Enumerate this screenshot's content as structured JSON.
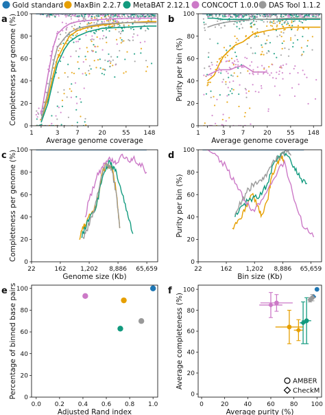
{
  "colors": {
    "Gold standard": "#1f77b4",
    "MaxBin 2.2.7": "#e69f00",
    "MetaBAT 2.12.1": "#119a7e",
    "CONCOCT 1.0.0": "#cc79c7",
    "DAS Tool 1.1.2": "#999999"
  },
  "legend": {
    "placement": "top",
    "entries": [
      "Gold standard",
      "MaxBin 2.2.7",
      "MetaBAT 2.12.1",
      "CONCOCT 1.0.0",
      "DAS Tool 1.1.2"
    ]
  },
  "chart_data": [
    {
      "panel": "a",
      "type": "scatter",
      "xlabel": "Average genome coverage",
      "ylabel": "Completeness per genome (%)",
      "x_scale": "log",
      "xlim": [
        1,
        210
      ],
      "ylim": [
        0,
        100
      ],
      "xticks": [
        1,
        1.5,
        3,
        4,
        7,
        11,
        20,
        55,
        148
      ],
      "xtick_labels": [
        "1",
        "",
        "3",
        "",
        "7",
        "",
        "20",
        "55",
        "148"
      ],
      "yticks": [
        0,
        20,
        40,
        60,
        80,
        100
      ],
      "grid": false,
      "lines": [
        {
          "name": "Gold standard",
          "x": [
            1.2,
            200
          ],
          "y": [
            100,
            100
          ]
        },
        {
          "name": "MaxBin 2.2.7",
          "x": [
            1.5,
            2,
            2.5,
            3,
            4,
            5,
            7,
            11,
            20,
            55,
            148,
            200
          ],
          "y": [
            5,
            25,
            45,
            60,
            72,
            80,
            85,
            88,
            90,
            92,
            93,
            93
          ]
        },
        {
          "name": "MetaBAT 2.12.1",
          "x": [
            1.5,
            2,
            2.5,
            3,
            4,
            5,
            7,
            11,
            20,
            55,
            148,
            200
          ],
          "y": [
            3,
            20,
            40,
            55,
            68,
            75,
            80,
            84,
            87,
            88,
            89,
            89
          ]
        },
        {
          "name": "CONCOCT 1.0.0",
          "x": [
            1.5,
            2,
            2.5,
            3,
            4,
            5,
            7,
            11,
            20,
            55,
            148,
            200
          ],
          "y": [
            10,
            45,
            70,
            82,
            88,
            91,
            93,
            94,
            95,
            96,
            96,
            96
          ]
        },
        {
          "name": "DAS Tool 1.1.2",
          "x": [
            1.5,
            2,
            2.5,
            3,
            4,
            5,
            7,
            11,
            20,
            55,
            148,
            200
          ],
          "y": [
            5,
            30,
            55,
            70,
            78,
            83,
            87,
            89,
            91,
            92,
            92,
            92
          ]
        }
      ]
    },
    {
      "panel": "b",
      "type": "scatter",
      "xlabel": "Average genome coverage",
      "ylabel": "Purity per bin (%)",
      "x_scale": "log",
      "xlim": [
        1,
        210
      ],
      "ylim": [
        0,
        100
      ],
      "xticks": [
        1,
        1.5,
        3,
        4,
        7,
        11,
        20,
        55,
        148
      ],
      "xtick_labels": [
        "1",
        "",
        "3",
        "",
        "7",
        "",
        "20",
        "55",
        "148"
      ],
      "yticks": [
        0,
        20,
        40,
        60,
        80,
        100
      ],
      "grid": false,
      "lines": [
        {
          "name": "Gold standard",
          "x": [
            1.2,
            200
          ],
          "y": [
            100,
            100
          ]
        },
        {
          "name": "MaxBin 2.2.7",
          "x": [
            1.5,
            2,
            2.5,
            3,
            4,
            5,
            7,
            11,
            20,
            55,
            148,
            200
          ],
          "y": [
            40,
            45,
            55,
            62,
            68,
            72,
            75,
            82,
            85,
            88,
            88,
            88
          ]
        },
        {
          "name": "MetaBAT 2.12.1",
          "x": [
            1.5,
            2,
            3,
            4,
            7,
            11,
            20,
            55,
            148,
            200
          ],
          "y": [
            96,
            96,
            95,
            95,
            95,
            95,
            95,
            95,
            95,
            95
          ]
        },
        {
          "name": "CONCOCT 1.0.0",
          "x": [
            1.5,
            2,
            2.5,
            3,
            4,
            5,
            7,
            11,
            20
          ],
          "y": [
            45,
            48,
            50,
            50,
            50,
            52,
            54,
            48,
            48
          ]
        },
        {
          "name": "DAS Tool 1.1.2",
          "x": [
            1.5,
            2,
            3,
            4,
            7,
            11,
            20,
            55,
            148,
            200
          ],
          "y": [
            88,
            90,
            92,
            93,
            94,
            95,
            95,
            96,
            96,
            96
          ]
        }
      ]
    },
    {
      "panel": "c",
      "type": "line",
      "xlabel": "Genome size (Kb)",
      "ylabel": "Completeness per genome (%)",
      "x_scale": "log",
      "xlim": [
        22,
        140000
      ],
      "ylim": [
        0,
        100
      ],
      "xticks": [
        22,
        162,
        1202,
        8886,
        65659
      ],
      "xtick_labels": [
        "22",
        "162",
        "1,202",
        "8,886",
        "65,659"
      ],
      "yticks": [
        0,
        20,
        40,
        60,
        80,
        100
      ],
      "grid": false,
      "lines": [
        {
          "name": "Gold standard",
          "x": [
            30,
            65000
          ],
          "y": [
            100,
            100
          ]
        },
        {
          "name": "MaxBin 2.2.7",
          "x": [
            600,
            800,
            1000,
            1500,
            2000,
            3000,
            4000,
            5000,
            6000,
            8000,
            10000
          ],
          "y": [
            20,
            30,
            35,
            45,
            50,
            80,
            88,
            85,
            85,
            60,
            30
          ]
        },
        {
          "name": "MetaBAT 2.12.1",
          "x": [
            700,
            900,
            1200,
            2000,
            3000,
            4000,
            5000,
            6000,
            8000,
            12000,
            18000,
            25000
          ],
          "y": [
            22,
            30,
            38,
            50,
            75,
            85,
            90,
            85,
            80,
            60,
            40,
            25
          ]
        },
        {
          "name": "CONCOCT 1.0.0",
          "x": [
            900,
            1200,
            2000,
            3000,
            4000,
            6000,
            8000,
            12000,
            18000,
            25000,
            40000,
            65000
          ],
          "y": [
            40,
            55,
            75,
            85,
            90,
            92,
            88,
            96,
            90,
            92,
            88,
            80
          ]
        },
        {
          "name": "DAS Tool 1.1.2",
          "x": [
            800,
            1000,
            1500,
            2000,
            3000,
            4000,
            5000,
            6000,
            8000,
            10000
          ],
          "y": [
            22,
            28,
            40,
            55,
            78,
            88,
            85,
            80,
            60,
            30
          ]
        }
      ]
    },
    {
      "panel": "d",
      "type": "line",
      "xlabel": "Bin size (Kb)",
      "ylabel": "Purity per bin (%)",
      "x_scale": "log",
      "xlim": [
        22,
        140000
      ],
      "ylim": [
        0,
        100
      ],
      "xticks": [
        22,
        162,
        1202,
        8886,
        65659
      ],
      "xtick_labels": [
        "22",
        "162",
        "1,202",
        "8,886",
        "65,659"
      ],
      "yticks": [
        0,
        20,
        40,
        60,
        80,
        100
      ],
      "grid": false,
      "lines": [
        {
          "name": "Gold standard",
          "x": [
            30,
            40000
          ],
          "y": [
            100,
            100
          ]
        },
        {
          "name": "MaxBin 2.2.7",
          "x": [
            250,
            400,
            600,
            1000,
            1500,
            2000,
            3000,
            4000,
            6000,
            8000,
            10000
          ],
          "y": [
            30,
            38,
            45,
            60,
            50,
            42,
            55,
            75,
            88,
            95,
            90
          ]
        },
        {
          "name": "MetaBAT 2.12.1",
          "x": [
            300,
            500,
            800,
            1200,
            2000,
            3000,
            5000,
            8000,
            12000,
            20000,
            30000,
            50000
          ],
          "y": [
            40,
            50,
            55,
            58,
            60,
            70,
            90,
            97,
            95,
            85,
            75,
            70
          ]
        },
        {
          "name": "CONCOCT 1.0.0",
          "x": [
            40,
            80,
            160,
            300,
            600,
            1200,
            2500,
            5000,
            10000,
            20000,
            40000,
            80000
          ],
          "y": [
            100,
            95,
            85,
            70,
            55,
            45,
            60,
            75,
            90,
            55,
            30,
            22
          ]
        },
        {
          "name": "DAS Tool 1.1.2",
          "x": [
            300,
            500,
            800,
            1200,
            2000,
            3000,
            5000,
            8000,
            12000,
            16000
          ],
          "y": [
            42,
            55,
            65,
            70,
            72,
            80,
            90,
            95,
            98,
            95
          ]
        }
      ]
    },
    {
      "panel": "e",
      "type": "scatter",
      "xlabel": "Adjusted Rand index",
      "ylabel": "Percentage of binned base pairs",
      "xlim": [
        -0.04,
        1.04
      ],
      "ylim": [
        0,
        103
      ],
      "xticks": [
        0.0,
        0.2,
        0.4,
        0.6,
        0.8,
        1.0
      ],
      "xtick_labels": [
        "0.0",
        "0.2",
        "0.4",
        "0.6",
        "0.8",
        "1.0"
      ],
      "yticks": [
        0,
        20,
        40,
        60,
        80,
        100
      ],
      "grid": false,
      "points": [
        {
          "name": "Gold standard",
          "x": 1.0,
          "y": 100
        },
        {
          "name": "MaxBin 2.2.7",
          "x": 0.75,
          "y": 89
        },
        {
          "name": "MetaBAT 2.12.1",
          "x": 0.72,
          "y": 63
        },
        {
          "name": "CONCOCT 1.0.0",
          "x": 0.42,
          "y": 93
        },
        {
          "name": "DAS Tool 1.1.2",
          "x": 0.9,
          "y": 70
        }
      ]
    },
    {
      "panel": "f",
      "type": "scatter",
      "xlabel": "Average purity (%)",
      "ylabel": "Average completeness (%)",
      "xlim": [
        -3,
        104
      ],
      "ylim": [
        -3,
        104
      ],
      "xticks": [
        0,
        20,
        40,
        60,
        80,
        100
      ],
      "xtick_labels": [
        "0",
        "20",
        "40",
        "60",
        "80",
        "100"
      ],
      "yticks": [
        0,
        20,
        40,
        60,
        80,
        100
      ],
      "grid": false,
      "marker_legend": {
        "placement": "lower-right",
        "entries": [
          "AMBER",
          "CheckM"
        ]
      },
      "points": [
        {
          "name": "Gold standard",
          "marker": "AMBER",
          "x": 100,
          "y": 100
        },
        {
          "name": "Gold standard",
          "marker": "CheckM",
          "x": 97,
          "y": 93
        },
        {
          "name": "MaxBin 2.2.7",
          "marker": "AMBER",
          "x": 76,
          "y": 64,
          "xerr": 12,
          "yerr": 16
        },
        {
          "name": "MaxBin 2.2.7",
          "marker": "CheckM",
          "x": 84,
          "y": 61,
          "xerr": 4,
          "yerr": 10
        },
        {
          "name": "MetaBAT 2.12.1",
          "marker": "AMBER",
          "x": 91,
          "y": 70,
          "xerr": 4,
          "yerr": 22
        },
        {
          "name": "MetaBAT 2.12.1",
          "marker": "CheckM",
          "x": 88,
          "y": 68,
          "xerr": 3,
          "yerr": 20
        },
        {
          "name": "CONCOCT 1.0.0",
          "marker": "AMBER",
          "x": 65,
          "y": 87,
          "xerr": 14,
          "yerr": 8
        },
        {
          "name": "CONCOCT 1.0.0",
          "marker": "CheckM",
          "x": 60,
          "y": 85,
          "xerr": 10,
          "yerr": 12
        },
        {
          "name": "DAS Tool 1.1.2",
          "marker": "AMBER",
          "x": 96,
          "y": 92,
          "xerr": 3,
          "yerr": 3
        },
        {
          "name": "DAS Tool 1.1.2",
          "marker": "CheckM",
          "x": 94,
          "y": 90,
          "xerr": 2,
          "yerr": 2
        }
      ]
    }
  ]
}
